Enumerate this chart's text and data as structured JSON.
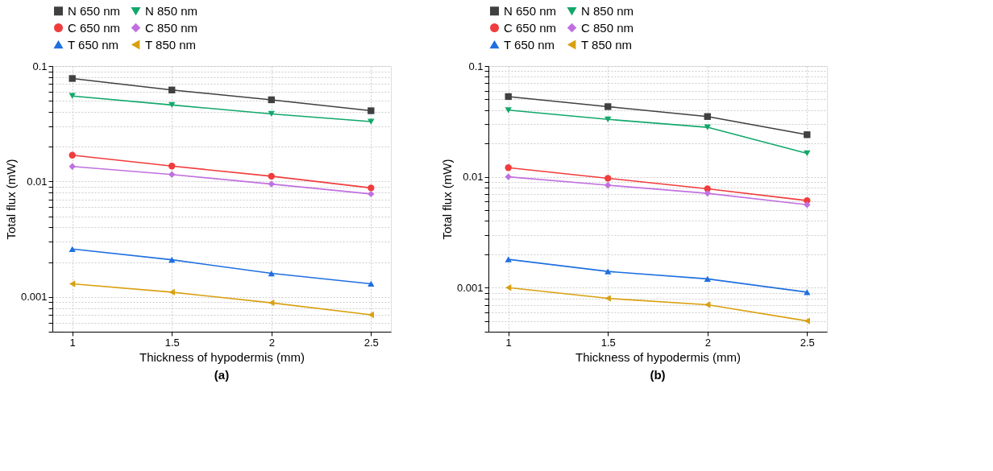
{
  "chart_data": [
    {
      "type": "line",
      "xlabel": "Thickness of hypodermis (mm)",
      "ylabel": "Total flux (mW)",
      "annotations": [
        "(a)"
      ],
      "x": [
        1,
        1.5,
        2,
        2.5
      ],
      "xlim": [
        0.9,
        2.6
      ],
      "xticks": [
        1,
        1.5,
        2,
        2.5
      ],
      "ylim": [
        0.0005,
        0.1
      ],
      "yticks": [
        {
          "value": 0.0005,
          "label": null
        },
        {
          "value": 0.0006,
          "label": null
        },
        {
          "value": 0.0007,
          "label": null
        },
        {
          "value": 0.0008,
          "label": null
        },
        {
          "value": 0.0009,
          "label": null
        },
        0.001,
        {
          "value": 0.002,
          "label": null
        },
        {
          "value": 0.003,
          "label": null
        },
        {
          "value": 0.004,
          "label": null
        },
        {
          "value": 0.005,
          "label": null
        },
        {
          "value": 0.006,
          "label": null
        },
        {
          "value": 0.007,
          "label": null
        },
        {
          "value": 0.008,
          "label": null
        },
        {
          "value": 0.009,
          "label": null
        },
        0.01,
        {
          "value": 0.02,
          "label": null
        },
        {
          "value": 0.03,
          "label": null
        },
        {
          "value": 0.04,
          "label": null
        },
        {
          "value": 0.05,
          "label": null
        },
        {
          "value": 0.06,
          "label": null
        },
        {
          "value": 0.07,
          "label": null
        },
        {
          "value": 0.08,
          "label": null
        },
        {
          "value": 0.09,
          "label": null
        },
        0.1
      ],
      "log": "y",
      "grid": true,
      "legend": "top",
      "line_style": "solid",
      "series": [
        {
          "name": "N 650 nm",
          "color": "#404040",
          "marker": "square",
          "values": [
            0.078,
            0.062,
            0.051,
            0.041
          ]
        },
        {
          "name": "N 850 nm",
          "color": "#12a86a",
          "marker": "triangle-down",
          "values": [
            0.055,
            0.046,
            0.0385,
            0.033
          ]
        },
        {
          "name": "C 650 nm",
          "color": "#f03c3c",
          "marker": "circle",
          "values": [
            0.0169,
            0.0136,
            0.0111,
            0.0088
          ]
        },
        {
          "name": "C 850 nm",
          "color": "#c070e0",
          "marker": "diamond",
          "values": [
            0.0135,
            0.0115,
            0.0095,
            0.0078
          ]
        },
        {
          "name": "T 650 nm",
          "color": "#1f6fe0",
          "marker": "triangle-up",
          "values": [
            0.0026,
            0.0021,
            0.0016,
            0.0013
          ]
        },
        {
          "name": "T 850 nm",
          "color": "#d9a010",
          "marker": "triangle-left",
          "values": [
            0.0013,
            0.0011,
            0.00089,
            0.0007
          ]
        }
      ]
    },
    {
      "type": "line",
      "xlabel": "Thickness of hypodermis (mm)",
      "ylabel": "Total flux (mW)",
      "annotations": [
        "(b)"
      ],
      "x": [
        1,
        1.5,
        2,
        2.5
      ],
      "xlim": [
        0.9,
        2.6
      ],
      "xticks": [
        1,
        1.5,
        2,
        2.5
      ],
      "ylim": [
        0.0004,
        0.1
      ],
      "yticks": [
        {
          "value": 0.0004,
          "label": null
        },
        {
          "value": 0.0005,
          "label": null
        },
        {
          "value": 0.0006,
          "label": null
        },
        {
          "value": 0.0007,
          "label": null
        },
        {
          "value": 0.0008,
          "label": null
        },
        {
          "value": 0.0009,
          "label": null
        },
        0.001,
        {
          "value": 0.002,
          "label": null
        },
        {
          "value": 0.003,
          "label": null
        },
        {
          "value": 0.004,
          "label": null
        },
        {
          "value": 0.005,
          "label": null
        },
        {
          "value": 0.006,
          "label": null
        },
        {
          "value": 0.007,
          "label": null
        },
        {
          "value": 0.008,
          "label": null
        },
        {
          "value": 0.009,
          "label": null
        },
        0.01,
        {
          "value": 0.02,
          "label": null
        },
        {
          "value": 0.03,
          "label": null
        },
        {
          "value": 0.04,
          "label": null
        },
        {
          "value": 0.05,
          "label": null
        },
        {
          "value": 0.06,
          "label": null
        },
        {
          "value": 0.07,
          "label": null
        },
        {
          "value": 0.08,
          "label": null
        },
        {
          "value": 0.09,
          "label": null
        },
        0.1
      ],
      "log": "y",
      "grid": true,
      "legend": "top",
      "line_style": "solid",
      "series": [
        {
          "name": "N 650 nm",
          "color": "#404040",
          "marker": "square",
          "values": [
            0.053,
            0.043,
            0.035,
            0.024
          ]
        },
        {
          "name": "N 850 nm",
          "color": "#12a86a",
          "marker": "triangle-down",
          "values": [
            0.04,
            0.033,
            0.028,
            0.0163
          ]
        },
        {
          "name": "C 650 nm",
          "color": "#f03c3c",
          "marker": "circle",
          "values": [
            0.0121,
            0.0097,
            0.0078,
            0.0061
          ]
        },
        {
          "name": "C 850 nm",
          "color": "#c070e0",
          "marker": "diamond",
          "values": [
            0.01,
            0.0084,
            0.0071,
            0.0056
          ]
        },
        {
          "name": "T 650 nm",
          "color": "#1f6fe0",
          "marker": "triangle-up",
          "values": [
            0.0018,
            0.0014,
            0.0012,
            0.00091
          ]
        },
        {
          "name": "T 850 nm",
          "color": "#d9a010",
          "marker": "triangle-left",
          "values": [
            0.001,
            0.0008,
            0.0007,
            0.0005
          ]
        }
      ]
    }
  ]
}
